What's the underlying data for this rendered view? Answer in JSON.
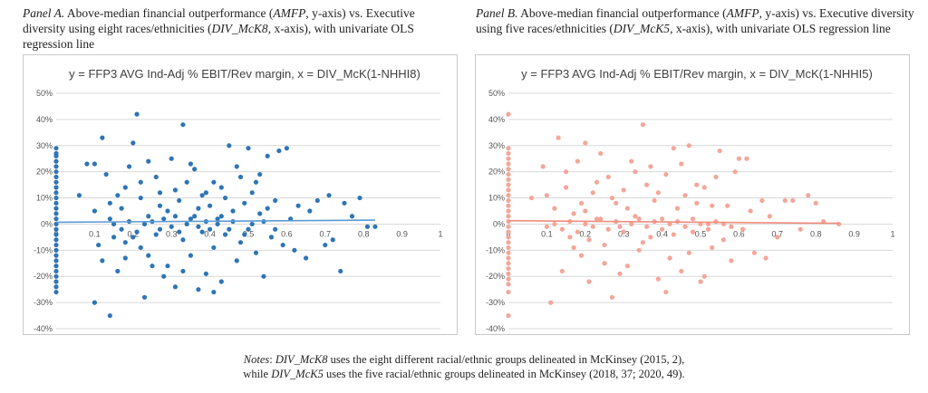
{
  "captions": {
    "a": {
      "panel": "Panel A.",
      "t1": " Above-median financial outperformance (",
      "v1": "AMFP",
      "t2": ", y-axis) vs. Executive diversity using eight races/ethnicities (",
      "v2": "DIV_McK8",
      "t3": ", x-axis), with univariate OLS regression line"
    },
    "b": {
      "panel": "Panel B.",
      "t1": " Above-median financial outperformance (",
      "v1": "AMFP",
      "t2": ", y-axis) vs. Executive diversity using five races/ethnicities (",
      "v2": "DIV_McK5",
      "t3": ", x-axis), with univariate OLS regression line"
    }
  },
  "notes": {
    "label": "Notes",
    "l1a": ": ",
    "l1v": "DIV_McK8",
    "l1b": " uses the eight different racial/ethnic groups delineated in McKinsey (2015, 2),",
    "l2a": "while ",
    "l2v": "DIV_McK5",
    "l2b": " uses the five racial/ethnic groups delineated in McKinsey (2018, 37; 2020, 49)."
  },
  "colors": {
    "panel_a": "#2e75b6",
    "panel_a_line": "#5b9bd5",
    "panel_b": "#f4a698",
    "panel_b_line": "#f08c7c",
    "grid": "#d9d9d9"
  },
  "chart_data": [
    {
      "type": "scatter",
      "title": "y = FFP3 AVG Ind-Adj % EBIT/Rev margin,  x = DIV_McK(1-NHHI8)",
      "xlabel": "",
      "ylabel": "",
      "xlim": [
        0,
        1
      ],
      "ylim": [
        -0.4,
        0.5
      ],
      "xticks": [
        0.1,
        0.2,
        0.3,
        0.4,
        0.5,
        0.6,
        0.7,
        0.8,
        0.9,
        1
      ],
      "xtick_labels": [
        "0.1",
        "0.2",
        "0.3",
        "0.4",
        "0.5",
        "0.6",
        "0.7",
        "0.8",
        "0.9",
        "1"
      ],
      "yticks": [
        -0.4,
        -0.3,
        -0.2,
        -0.1,
        0,
        0.1,
        0.2,
        0.3,
        0.4,
        0.5
      ],
      "ytick_labels": [
        "-40%",
        "-30%",
        "-20%",
        "-10%",
        "0%",
        "10%",
        "20%",
        "30%",
        "40%",
        "50%"
      ],
      "zero_label": "0",
      "grid": true,
      "regression": {
        "x": [
          0,
          0.83
        ],
        "y": [
          0.007,
          0.015
        ]
      },
      "points": [
        [
          0,
          0.29
        ],
        [
          0,
          0.27
        ],
        [
          0,
          0.26
        ],
        [
          0,
          0.24
        ],
        [
          0,
          0.22
        ],
        [
          0,
          0.2
        ],
        [
          0,
          0.18
        ],
        [
          0,
          0.16
        ],
        [
          0,
          0.14
        ],
        [
          0,
          0.12
        ],
        [
          0,
          0.1
        ],
        [
          0,
          0.08
        ],
        [
          0,
          0.06
        ],
        [
          0,
          0.04
        ],
        [
          0,
          0.02
        ],
        [
          0,
          0.0
        ],
        [
          0,
          -0.02
        ],
        [
          0,
          -0.04
        ],
        [
          0,
          -0.06
        ],
        [
          0,
          -0.08
        ],
        [
          0,
          -0.1
        ],
        [
          0,
          -0.12
        ],
        [
          0,
          -0.14
        ],
        [
          0,
          -0.16
        ],
        [
          0,
          -0.18
        ],
        [
          0,
          -0.2
        ],
        [
          0,
          -0.22
        ],
        [
          0,
          -0.24
        ],
        [
          0,
          -0.26
        ],
        [
          0.06,
          0.11
        ],
        [
          0.08,
          0.23
        ],
        [
          0.1,
          0.23
        ],
        [
          0.1,
          0.05
        ],
        [
          0.11,
          -0.08
        ],
        [
          0.1,
          -0.3
        ],
        [
          0.12,
          0.33
        ],
        [
          0.14,
          -0.35
        ],
        [
          0.13,
          0.19
        ],
        [
          0.14,
          0.02
        ],
        [
          0.15,
          -0.05
        ],
        [
          0.16,
          0.11
        ],
        [
          0.16,
          -0.18
        ],
        [
          0.17,
          0.06
        ],
        [
          0.18,
          -0.13
        ],
        [
          0.18,
          0.14
        ],
        [
          0.19,
          0.22
        ],
        [
          0.2,
          0.31
        ],
        [
          0.2,
          -0.05
        ],
        [
          0.21,
          0.42
        ],
        [
          0.22,
          0.1
        ],
        [
          0.22,
          -0.09
        ],
        [
          0.23,
          -0.28
        ],
        [
          0.24,
          0.24
        ],
        [
          0.24,
          0.03
        ],
        [
          0.25,
          -0.16
        ],
        [
          0.26,
          0.18
        ],
        [
          0.27,
          -0.02
        ],
        [
          0.27,
          0.12
        ],
        [
          0.28,
          -0.2
        ],
        [
          0.29,
          0.05
        ],
        [
          0.3,
          0.25
        ],
        [
          0.31,
          -0.24
        ],
        [
          0.32,
          0.09
        ],
        [
          0.33,
          0.38
        ],
        [
          0.33,
          -0.06
        ],
        [
          0.34,
          0.16
        ],
        [
          0.35,
          -0.12
        ],
        [
          0.36,
          0.03
        ],
        [
          0.36,
          0.21
        ],
        [
          0.37,
          -0.25
        ],
        [
          0.38,
          0.11
        ],
        [
          0.38,
          -0.03
        ],
        [
          0.39,
          -0.19
        ],
        [
          0.4,
          0.07
        ],
        [
          0.41,
          0.16
        ],
        [
          0.41,
          -0.09
        ],
        [
          0.42,
          0.02
        ],
        [
          0.43,
          -0.22
        ],
        [
          0.44,
          0.1
        ],
        [
          0.44,
          -0.04
        ],
        [
          0.45,
          0.3
        ],
        [
          0.46,
          0.05
        ],
        [
          0.47,
          -0.14
        ],
        [
          0.48,
          0.18
        ],
        [
          0.48,
          -0.07
        ],
        [
          0.49,
          0.08
        ],
        [
          0.5,
          -0.02
        ],
        [
          0.5,
          0.29
        ],
        [
          0.51,
          0.12
        ],
        [
          0.52,
          -0.11
        ],
        [
          0.53,
          0.04
        ],
        [
          0.53,
          0.19
        ],
        [
          0.54,
          -0.2
        ],
        [
          0.55,
          0.06
        ],
        [
          0.55,
          0.26
        ],
        [
          0.56,
          -0.05
        ],
        [
          0.57,
          0.09
        ],
        [
          0.58,
          0.28
        ],
        [
          0.59,
          -0.08
        ],
        [
          0.6,
          0.29
        ],
        [
          0.61,
          0.02
        ],
        [
          0.62,
          -0.1
        ],
        [
          0.63,
          0.07
        ],
        [
          0.65,
          -0.13
        ],
        [
          0.66,
          0.05
        ],
        [
          0.68,
          0.09
        ],
        [
          0.7,
          -0.08
        ],
        [
          0.71,
          0.11
        ],
        [
          0.72,
          -0.06
        ],
        [
          0.74,
          -0.18
        ],
        [
          0.75,
          0.08
        ],
        [
          0.77,
          0.03
        ],
        [
          0.79,
          0.1
        ],
        [
          0.81,
          -0.01
        ],
        [
          0.83,
          -0.01
        ],
        [
          0.12,
          -0.14
        ],
        [
          0.15,
          0.0
        ],
        [
          0.17,
          -0.02
        ],
        [
          0.19,
          0.01
        ],
        [
          0.21,
          -0.03
        ],
        [
          0.23,
          0.0
        ],
        [
          0.25,
          0.01
        ],
        [
          0.26,
          -0.04
        ],
        [
          0.28,
          0.02
        ],
        [
          0.3,
          -0.01
        ],
        [
          0.31,
          0.03
        ],
        [
          0.32,
          -0.03
        ],
        [
          0.34,
          0.0
        ],
        [
          0.35,
          0.02
        ],
        [
          0.37,
          -0.01
        ],
        [
          0.39,
          0.01
        ],
        [
          0.4,
          -0.02
        ],
        [
          0.42,
          0.0
        ],
        [
          0.43,
          0.03
        ],
        [
          0.45,
          -0.02
        ],
        [
          0.46,
          0.01
        ],
        [
          0.49,
          -0.04
        ],
        [
          0.51,
          0.0
        ],
        [
          0.54,
          0.01
        ],
        [
          0.57,
          -0.02
        ],
        [
          0.14,
          0.08
        ],
        [
          0.18,
          -0.07
        ],
        [
          0.22,
          0.16
        ],
        [
          0.24,
          -0.12
        ],
        [
          0.27,
          0.07
        ],
        [
          0.29,
          -0.16
        ],
        [
          0.31,
          0.13
        ],
        [
          0.33,
          -0.18
        ],
        [
          0.35,
          0.23
        ],
        [
          0.37,
          0.06
        ],
        [
          0.39,
          0.12
        ],
        [
          0.41,
          -0.26
        ],
        [
          0.43,
          0.14
        ],
        [
          0.47,
          0.22
        ],
        [
          0.52,
          0.16
        ]
      ]
    },
    {
      "type": "scatter",
      "title": "y = FFP3 AVG Ind-Adj % EBIT/Rev margin,  x = DIV_McK(1-NHHI5)",
      "xlabel": "",
      "ylabel": "",
      "xlim": [
        0,
        1
      ],
      "ylim": [
        -0.4,
        0.5
      ],
      "xticks": [
        0.1,
        0.2,
        0.3,
        0.4,
        0.5,
        0.6,
        0.7,
        0.8,
        0.9,
        1
      ],
      "xtick_labels": [
        "0.1",
        "0.2",
        "0.3",
        "0.4",
        "0.5",
        "0.6",
        "0.7",
        "0.8",
        "0.9",
        "1"
      ],
      "yticks": [
        -0.4,
        -0.3,
        -0.2,
        -0.1,
        0,
        0.1,
        0.2,
        0.3,
        0.4,
        0.5
      ],
      "ytick_labels": [
        "-40%",
        "-30%",
        "-20%",
        "-10%",
        "0%",
        "10%",
        "20%",
        "30%",
        "40%",
        "50%"
      ],
      "zero_label": "0",
      "grid": true,
      "regression": {
        "x": [
          0,
          0.86
        ],
        "y": [
          0.013,
          0.003
        ]
      },
      "points": [
        [
          0,
          0.42
        ],
        [
          0,
          0.29
        ],
        [
          0,
          0.27
        ],
        [
          0,
          0.25
        ],
        [
          0,
          0.23
        ],
        [
          0,
          0.21
        ],
        [
          0,
          0.19
        ],
        [
          0,
          0.17
        ],
        [
          0,
          0.15
        ],
        [
          0,
          0.13
        ],
        [
          0,
          0.11
        ],
        [
          0,
          0.09
        ],
        [
          0,
          0.07
        ],
        [
          0,
          0.05
        ],
        [
          0,
          0.03
        ],
        [
          0,
          0.01
        ],
        [
          0,
          -0.01
        ],
        [
          0,
          -0.03
        ],
        [
          0,
          -0.05
        ],
        [
          0,
          -0.07
        ],
        [
          0,
          -0.09
        ],
        [
          0,
          -0.11
        ],
        [
          0,
          -0.13
        ],
        [
          0,
          -0.15
        ],
        [
          0,
          -0.17
        ],
        [
          0,
          -0.19
        ],
        [
          0,
          -0.21
        ],
        [
          0,
          -0.23
        ],
        [
          0,
          -0.26
        ],
        [
          0,
          -0.35
        ],
        [
          0.06,
          0.1
        ],
        [
          0.09,
          0.22
        ],
        [
          0.1,
          0.11
        ],
        [
          0.1,
          -0.01
        ],
        [
          0.11,
          -0.3
        ],
        [
          0.12,
          0.06
        ],
        [
          0.13,
          0.33
        ],
        [
          0.14,
          -0.18
        ],
        [
          0.15,
          0.14
        ],
        [
          0.16,
          -0.05
        ],
        [
          0.17,
          0.04
        ],
        [
          0.18,
          0.24
        ],
        [
          0.19,
          -0.12
        ],
        [
          0.2,
          0.31
        ],
        [
          0.2,
          0.05
        ],
        [
          0.21,
          -0.22
        ],
        [
          0.22,
          0.12
        ],
        [
          0.23,
          0.02
        ],
        [
          0.24,
          0.27
        ],
        [
          0.25,
          -0.08
        ],
        [
          0.26,
          0.18
        ],
        [
          0.27,
          -0.28
        ],
        [
          0.28,
          0.08
        ],
        [
          0.29,
          -0.01
        ],
        [
          0.3,
          0.13
        ],
        [
          0.31,
          -0.16
        ],
        [
          0.32,
          0.24
        ],
        [
          0.33,
          0.03
        ],
        [
          0.34,
          -0.1
        ],
        [
          0.35,
          0.38
        ],
        [
          0.36,
          0.15
        ],
        [
          0.37,
          -0.05
        ],
        [
          0.38,
          0.09
        ],
        [
          0.39,
          -0.21
        ],
        [
          0.4,
          0.02
        ],
        [
          0.41,
          0.19
        ],
        [
          0.42,
          -0.13
        ],
        [
          0.43,
          0.29
        ],
        [
          0.44,
          0.06
        ],
        [
          0.45,
          -0.18
        ],
        [
          0.46,
          0.11
        ],
        [
          0.47,
          0.3
        ],
        [
          0.48,
          -0.03
        ],
        [
          0.49,
          0.08
        ],
        [
          0.5,
          -0.22
        ],
        [
          0.51,
          0.14
        ],
        [
          0.52,
          0.0
        ],
        [
          0.53,
          -0.09
        ],
        [
          0.54,
          0.18
        ],
        [
          0.55,
          0.28
        ],
        [
          0.56,
          -0.06
        ],
        [
          0.57,
          0.07
        ],
        [
          0.58,
          -0.14
        ],
        [
          0.59,
          0.2
        ],
        [
          0.6,
          0.25
        ],
        [
          0.61,
          -0.02
        ],
        [
          0.62,
          0.25
        ],
        [
          0.63,
          0.05
        ],
        [
          0.64,
          -0.11
        ],
        [
          0.66,
          0.09
        ],
        [
          0.67,
          -0.13
        ],
        [
          0.68,
          0.03
        ],
        [
          0.7,
          -0.05
        ],
        [
          0.72,
          0.09
        ],
        [
          0.74,
          0.09
        ],
        [
          0.76,
          -0.02
        ],
        [
          0.78,
          0.11
        ],
        [
          0.8,
          0.08
        ],
        [
          0.82,
          0.01
        ],
        [
          0.86,
          0.0
        ],
        [
          0.12,
          0.0
        ],
        [
          0.14,
          -0.02
        ],
        [
          0.16,
          0.01
        ],
        [
          0.18,
          -0.03
        ],
        [
          0.2,
          0.0
        ],
        [
          0.22,
          -0.01
        ],
        [
          0.24,
          0.02
        ],
        [
          0.26,
          -0.02
        ],
        [
          0.28,
          0.01
        ],
        [
          0.3,
          -0.03
        ],
        [
          0.32,
          0.0
        ],
        [
          0.34,
          0.02
        ],
        [
          0.36,
          -0.01
        ],
        [
          0.38,
          0.01
        ],
        [
          0.4,
          -0.02
        ],
        [
          0.42,
          0.0
        ],
        [
          0.44,
          0.01
        ],
        [
          0.46,
          -0.01
        ],
        [
          0.48,
          0.02
        ],
        [
          0.5,
          0.0
        ],
        [
          0.52,
          -0.02
        ],
        [
          0.54,
          0.01
        ],
        [
          0.56,
          0.0
        ],
        [
          0.58,
          -0.01
        ],
        [
          0.15,
          0.2
        ],
        [
          0.17,
          -0.09
        ],
        [
          0.19,
          0.08
        ],
        [
          0.21,
          -0.06
        ],
        [
          0.23,
          0.16
        ],
        [
          0.25,
          -0.15
        ],
        [
          0.27,
          0.1
        ],
        [
          0.29,
          -0.19
        ],
        [
          0.31,
          0.06
        ],
        [
          0.33,
          0.2
        ],
        [
          0.35,
          -0.07
        ],
        [
          0.37,
          0.22
        ],
        [
          0.39,
          0.12
        ],
        [
          0.41,
          -0.26
        ],
        [
          0.43,
          -0.04
        ],
        [
          0.45,
          0.23
        ],
        [
          0.47,
          -0.11
        ],
        [
          0.49,
          0.15
        ],
        [
          0.51,
          -0.2
        ],
        [
          0.53,
          0.07
        ]
      ]
    }
  ]
}
